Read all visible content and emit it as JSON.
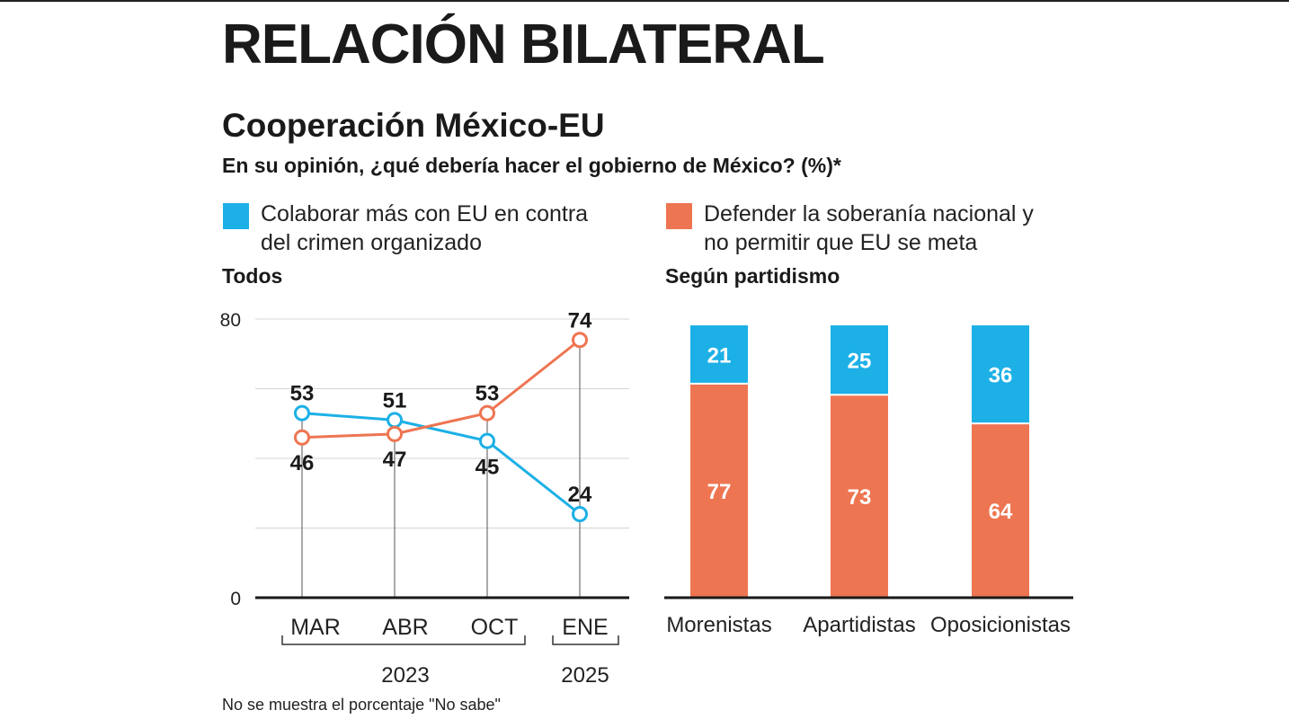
{
  "header": {
    "title": "RELACIÓN BILATERAL",
    "subtitle": "Cooperación México-EU",
    "question": "En su opinión, ¿qué debería hacer el gobierno de México? (%)*"
  },
  "legend": [
    {
      "label_line1": "Colaborar más con EU en contra",
      "label_line2": "del crimen organizado",
      "color": "#1cb0e6"
    },
    {
      "label_line1": "Defender la soberanía nacional y",
      "label_line2": "no  permitir que EU se meta",
      "color": "#ee7552"
    }
  ],
  "footnote": "No se muestra el porcentaje \"No sabe\"",
  "colors": {
    "blue": "#1cb0e6",
    "orange": "#ee7552",
    "axis": "#1a1a1a",
    "grid": "#d4d4d4"
  },
  "chart_data": [
    {
      "type": "line",
      "title": "Todos",
      "categories": [
        "MAR",
        "ABR",
        "OCT",
        "ENE"
      ],
      "year_groups": [
        {
          "label": "2023",
          "categories": [
            "MAR",
            "ABR",
            "OCT"
          ]
        },
        {
          "label": "2025",
          "categories": [
            "ENE"
          ]
        }
      ],
      "ylim": [
        0,
        80
      ],
      "yticks": [
        0,
        80
      ],
      "series": [
        {
          "name": "Colaborar más con EU en contra del crimen organizado",
          "values": [
            53,
            51,
            45,
            24
          ],
          "color": "#1cb0e6"
        },
        {
          "name": "Defender la soberanía nacional y no permitir que EU se meta",
          "values": [
            46,
            47,
            53,
            74
          ],
          "color": "#ee7552"
        }
      ]
    },
    {
      "type": "bar",
      "stacked": true,
      "title": "Según partidismo",
      "categories": [
        "Morenistas",
        "Apartidistas",
        "Oposicionistas"
      ],
      "series": [
        {
          "name": "Defender la soberanía nacional y no permitir que EU se meta",
          "values": [
            77,
            73,
            64
          ],
          "color": "#ee7552"
        },
        {
          "name": "Colaborar más con EU en contra del crimen organizado",
          "values": [
            21,
            25,
            36
          ],
          "color": "#1cb0e6"
        }
      ]
    }
  ]
}
